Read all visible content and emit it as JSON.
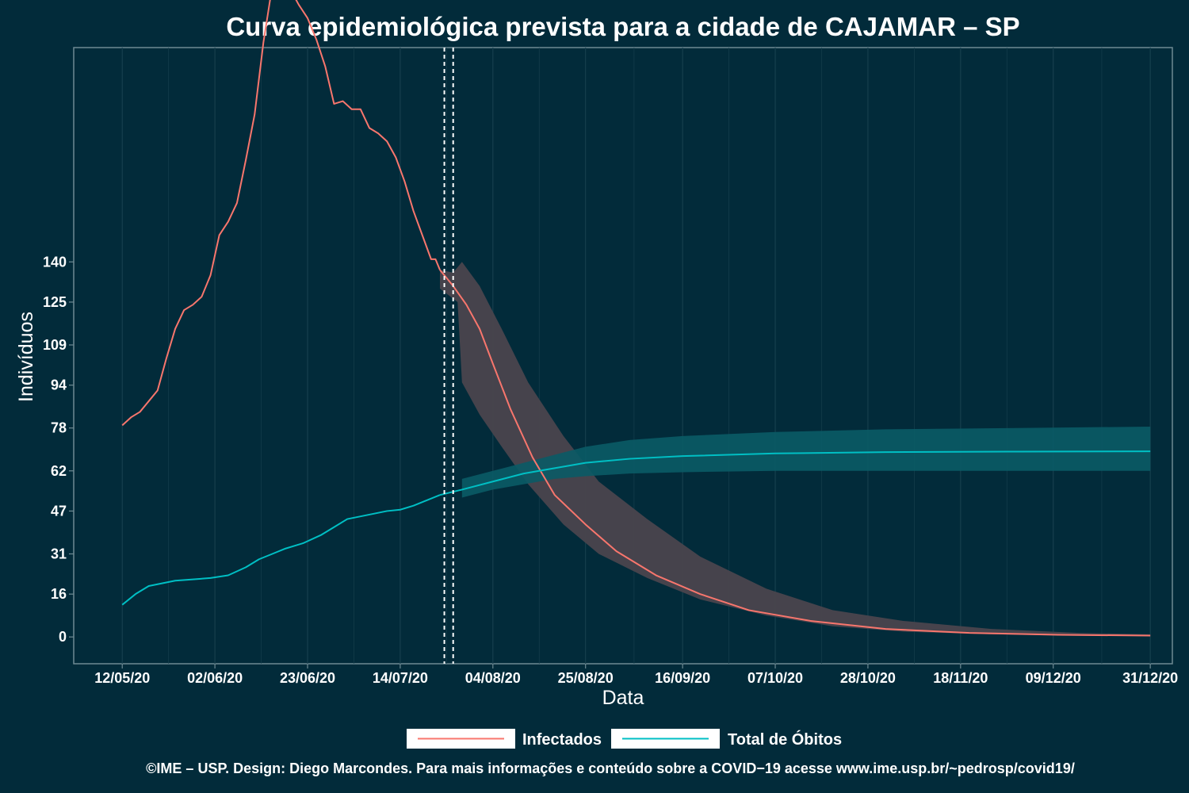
{
  "chart_data": {
    "type": "line",
    "title": "Curva epidemiológica prevista para a cidade de CAJAMAR – SP",
    "xlabel": "Data",
    "ylabel": "Indivíduos",
    "x_ticks": [
      "12/05/20",
      "02/06/20",
      "23/06/20",
      "14/07/20",
      "04/08/20",
      "25/08/20",
      "16/09/20",
      "07/10/20",
      "28/10/20",
      "18/11/20",
      "09/12/20",
      "31/12/20"
    ],
    "x_tick_dates": [
      "2020-05-12",
      "2020-06-02",
      "2020-06-23",
      "2020-07-14",
      "2020-08-04",
      "2020-08-25",
      "2020-09-16",
      "2020-10-07",
      "2020-10-28",
      "2020-11-18",
      "2020-12-09",
      "2020-12-31"
    ],
    "xlim": [
      "2020-05-01",
      "2021-01-05"
    ],
    "y_ticks": [
      "0",
      "16",
      "31",
      "47",
      "62",
      "78",
      "94",
      "109",
      "125",
      "140"
    ],
    "y_tick_values": [
      0,
      16,
      31,
      47,
      62,
      78,
      94,
      109,
      125,
      140
    ],
    "ylim": [
      -10,
      220
    ],
    "vertical_lines": [
      "2020-07-24",
      "2020-07-26"
    ],
    "grid": "vertical",
    "legend_position": "bottom",
    "colors": {
      "background": "#022b3a",
      "infectados": "#f8766d",
      "obitos": "#00bfc4",
      "band_infectados": "#4a454d",
      "band_obitos": "#0a5b66",
      "grid": "#163f4d",
      "frame": "#6e8a93"
    },
    "series": [
      {
        "name": "Infectados",
        "color": "#f8766d",
        "observed": [
          [
            "2020-05-12",
            79
          ],
          [
            "2020-05-14",
            82
          ],
          [
            "2020-05-16",
            84
          ],
          [
            "2020-05-18",
            88
          ],
          [
            "2020-05-20",
            92
          ],
          [
            "2020-05-22",
            104
          ],
          [
            "2020-05-24",
            115
          ],
          [
            "2020-05-26",
            122
          ],
          [
            "2020-05-28",
            124
          ],
          [
            "2020-05-30",
            127
          ],
          [
            "2020-06-01",
            135
          ],
          [
            "2020-06-03",
            150
          ],
          [
            "2020-06-05",
            155
          ],
          [
            "2020-06-07",
            162
          ],
          [
            "2020-06-09",
            178
          ],
          [
            "2020-06-11",
            195
          ],
          [
            "2020-06-13",
            222
          ],
          [
            "2020-06-15",
            243
          ],
          [
            "2020-06-17",
            243
          ],
          [
            "2020-06-19",
            242
          ],
          [
            "2020-06-21",
            236
          ],
          [
            "2020-06-23",
            231
          ],
          [
            "2020-06-25",
            223
          ],
          [
            "2020-06-27",
            213
          ],
          [
            "2020-06-29",
            199
          ],
          [
            "2020-07-01",
            200
          ],
          [
            "2020-07-03",
            197
          ],
          [
            "2020-07-05",
            197
          ],
          [
            "2020-07-07",
            190
          ],
          [
            "2020-07-09",
            188
          ],
          [
            "2020-07-11",
            185
          ],
          [
            "2020-07-13",
            179
          ],
          [
            "2020-07-15",
            170
          ],
          [
            "2020-07-17",
            159
          ],
          [
            "2020-07-19",
            150
          ],
          [
            "2020-07-21",
            141
          ],
          [
            "2020-07-22",
            141
          ],
          [
            "2020-07-23",
            137
          ]
        ],
        "forecast": [
          [
            "2020-07-23",
            137
          ],
          [
            "2020-07-26",
            131
          ],
          [
            "2020-07-29",
            124
          ],
          [
            "2020-08-01",
            115
          ],
          [
            "2020-08-04",
            102
          ],
          [
            "2020-08-08",
            85
          ],
          [
            "2020-08-13",
            67
          ],
          [
            "2020-08-18",
            53
          ],
          [
            "2020-08-25",
            42
          ],
          [
            "2020-09-01",
            32
          ],
          [
            "2020-09-10",
            23
          ],
          [
            "2020-09-20",
            16
          ],
          [
            "2020-10-01",
            10
          ],
          [
            "2020-10-15",
            6
          ],
          [
            "2020-11-01",
            3
          ],
          [
            "2020-11-20",
            1.5
          ],
          [
            "2020-12-10",
            0.8
          ],
          [
            "2020-12-31",
            0.5
          ]
        ],
        "band_upper": [
          [
            "2020-07-23",
            137
          ],
          [
            "2020-07-26",
            136
          ],
          [
            "2020-07-28",
            140
          ],
          [
            "2020-08-01",
            131
          ],
          [
            "2020-08-06",
            115
          ],
          [
            "2020-08-12",
            95
          ],
          [
            "2020-08-20",
            75
          ],
          [
            "2020-08-28",
            58
          ],
          [
            "2020-09-08",
            44
          ],
          [
            "2020-09-20",
            30
          ],
          [
            "2020-10-05",
            18
          ],
          [
            "2020-10-20",
            10
          ],
          [
            "2020-11-05",
            6
          ],
          [
            "2020-11-25",
            3
          ],
          [
            "2020-12-15",
            1.5
          ],
          [
            "2020-12-31",
            1
          ]
        ],
        "band_lower": [
          [
            "2020-07-23",
            130
          ],
          [
            "2020-07-27",
            125
          ],
          [
            "2020-07-28",
            95
          ],
          [
            "2020-08-01",
            83
          ],
          [
            "2020-08-06",
            71
          ],
          [
            "2020-08-12",
            57
          ],
          [
            "2020-08-20",
            42
          ],
          [
            "2020-08-28",
            31
          ],
          [
            "2020-09-08",
            22
          ],
          [
            "2020-09-20",
            14
          ],
          [
            "2020-10-05",
            8
          ],
          [
            "2020-10-20",
            4
          ],
          [
            "2020-11-05",
            2
          ],
          [
            "2020-11-25",
            1
          ],
          [
            "2020-12-15",
            0.5
          ],
          [
            "2020-12-31",
            0.3
          ]
        ]
      },
      {
        "name": "Total de Óbitos",
        "color": "#00bfc4",
        "observed": [
          [
            "2020-05-12",
            12
          ],
          [
            "2020-05-15",
            16
          ],
          [
            "2020-05-18",
            19
          ],
          [
            "2020-05-21",
            20
          ],
          [
            "2020-05-24",
            21
          ],
          [
            "2020-05-28",
            21.5
          ],
          [
            "2020-06-01",
            22
          ],
          [
            "2020-06-05",
            23
          ],
          [
            "2020-06-09",
            26
          ],
          [
            "2020-06-12",
            29
          ],
          [
            "2020-06-15",
            31
          ],
          [
            "2020-06-18",
            33
          ],
          [
            "2020-06-22",
            35
          ],
          [
            "2020-06-26",
            38
          ],
          [
            "2020-06-29",
            41
          ],
          [
            "2020-07-02",
            44
          ],
          [
            "2020-07-05",
            45
          ],
          [
            "2020-07-08",
            46
          ],
          [
            "2020-07-11",
            47
          ],
          [
            "2020-07-14",
            47.5
          ],
          [
            "2020-07-17",
            49
          ],
          [
            "2020-07-20",
            51
          ],
          [
            "2020-07-23",
            53
          ]
        ],
        "forecast": [
          [
            "2020-07-23",
            53
          ],
          [
            "2020-07-28",
            55
          ],
          [
            "2020-08-04",
            58
          ],
          [
            "2020-08-11",
            61
          ],
          [
            "2020-08-18",
            63
          ],
          [
            "2020-08-25",
            65
          ],
          [
            "2020-09-04",
            66.5
          ],
          [
            "2020-09-16",
            67.5
          ],
          [
            "2020-10-07",
            68.5
          ],
          [
            "2020-11-01",
            69
          ],
          [
            "2020-12-01",
            69.2
          ],
          [
            "2020-12-31",
            69.3
          ]
        ],
        "band_upper": [
          [
            "2020-07-28",
            59
          ],
          [
            "2020-08-04",
            62
          ],
          [
            "2020-08-11",
            65
          ],
          [
            "2020-08-18",
            68
          ],
          [
            "2020-08-25",
            71
          ],
          [
            "2020-09-04",
            73.5
          ],
          [
            "2020-09-16",
            75
          ],
          [
            "2020-10-07",
            76.5
          ],
          [
            "2020-11-01",
            77.5
          ],
          [
            "2020-12-01",
            78
          ],
          [
            "2020-12-31",
            78.5
          ]
        ],
        "band_lower": [
          [
            "2020-07-28",
            52
          ],
          [
            "2020-08-04",
            55
          ],
          [
            "2020-08-11",
            57
          ],
          [
            "2020-08-18",
            59
          ],
          [
            "2020-08-25",
            60
          ],
          [
            "2020-09-04",
            61
          ],
          [
            "2020-09-16",
            61.5
          ],
          [
            "2020-10-07",
            62
          ],
          [
            "2020-11-01",
            62
          ],
          [
            "2020-12-01",
            62
          ],
          [
            "2020-12-31",
            62
          ]
        ]
      }
    ]
  },
  "legend": {
    "items": [
      {
        "label": "Infectados",
        "color": "#f8766d"
      },
      {
        "label": "Total de Óbitos",
        "color": "#00bfc4"
      }
    ]
  },
  "footer": {
    "text": "©IME – USP. Design: Diego Marcondes. Para mais informações e conteúdo sobre a COVID−19 acesse www.ime.usp.br/~pedrosp/covid19/"
  }
}
